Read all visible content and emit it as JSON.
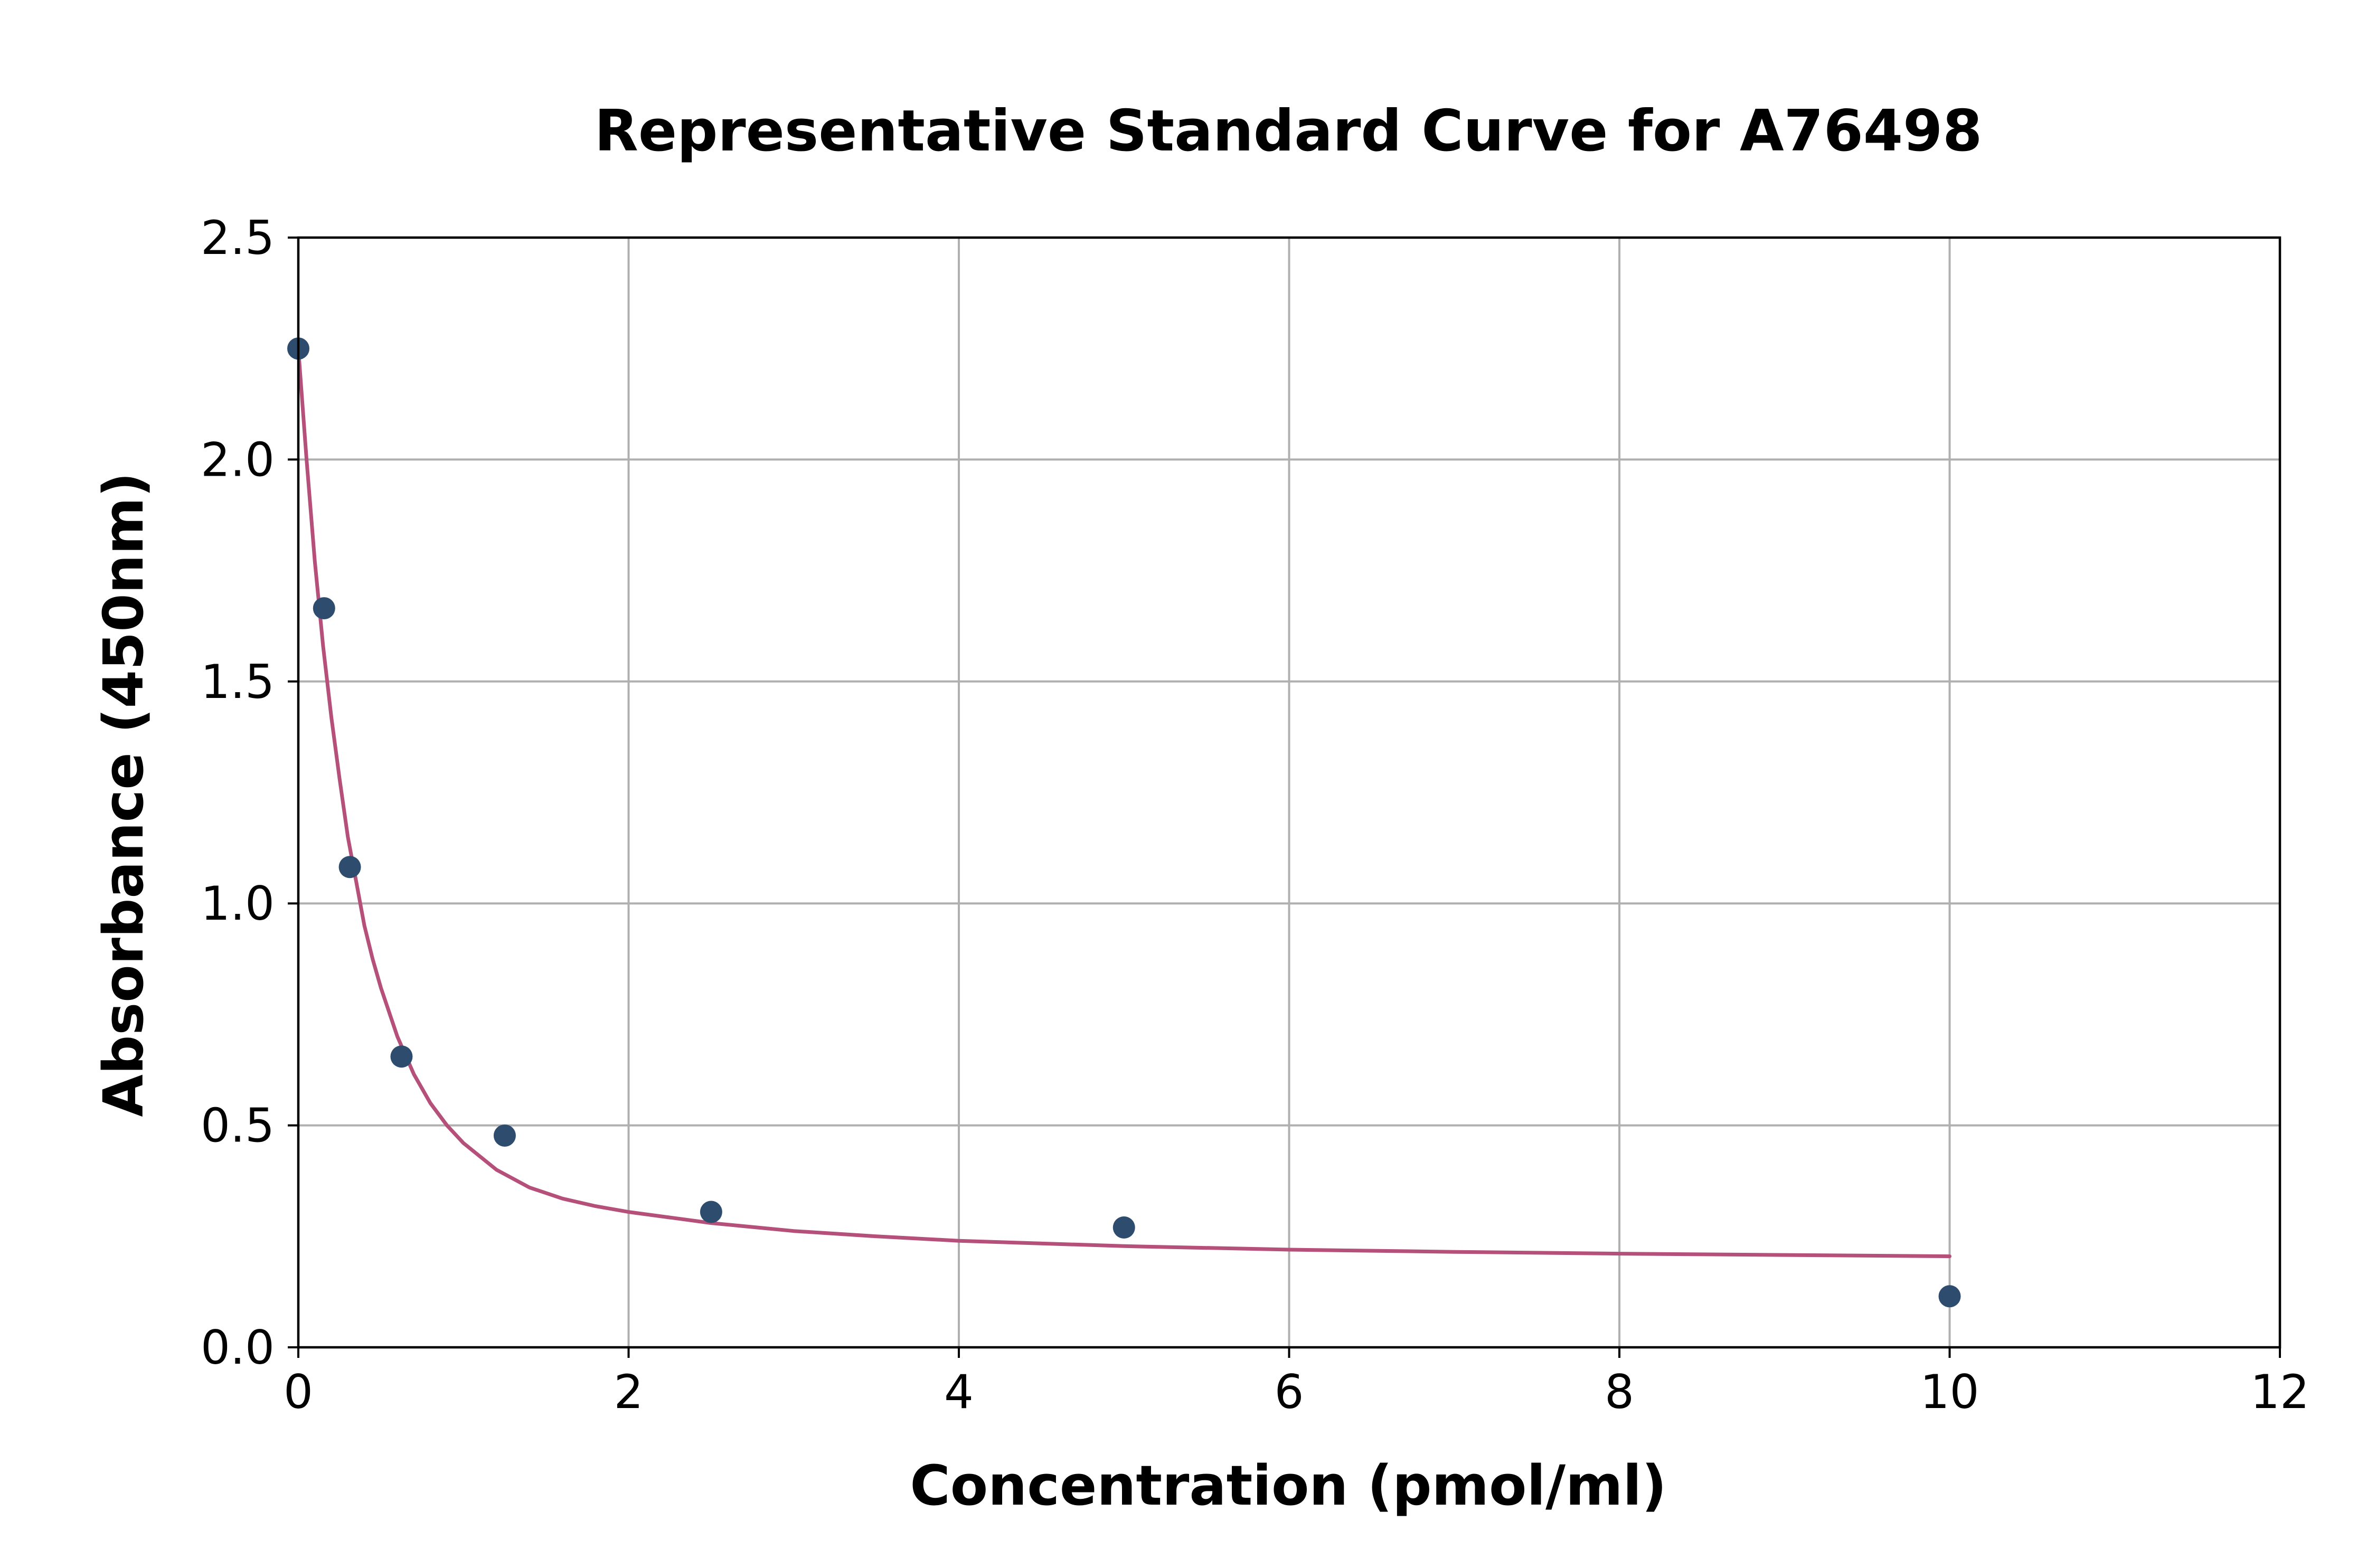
{
  "chart_data": {
    "type": "scatter",
    "title": "Representative Standard Curve for A76498",
    "xlabel": "Concentration (pmol/ml)",
    "ylabel": "Absorbance (450nm)",
    "xlim": [
      0,
      12
    ],
    "ylim": [
      0,
      2.5
    ],
    "x_ticks": [
      0,
      2,
      4,
      6,
      8,
      10,
      12
    ],
    "y_ticks": [
      0.0,
      0.5,
      1.0,
      1.5,
      2.0,
      2.5
    ],
    "x_tick_labels": [
      "0",
      "2",
      "4",
      "6",
      "8",
      "10",
      "12"
    ],
    "y_tick_labels": [
      "0.0",
      "0.5",
      "1.0",
      "1.5",
      "2.0",
      "2.5"
    ],
    "grid": true,
    "legend": "none",
    "series": [
      {
        "kind": "points",
        "x": [
          0,
          0.156,
          0.312,
          0.625,
          1.25,
          2.5,
          5,
          10
        ],
        "y": [
          2.25,
          1.665,
          1.082,
          0.655,
          0.477,
          0.305,
          0.27,
          0.115
        ],
        "color": "#2e4d6e"
      },
      {
        "kind": "fit-line",
        "x": [
          0,
          0.05,
          0.1,
          0.15,
          0.2,
          0.25,
          0.3,
          0.35,
          0.4,
          0.45,
          0.5,
          0.6,
          0.7,
          0.8,
          0.9,
          1.0,
          1.2,
          1.4,
          1.6,
          1.8,
          2.0,
          2.5,
          3.0,
          3.5,
          4.0,
          5.0,
          6.0,
          7.0,
          8.0,
          9.0,
          10.0
        ],
        "y": [
          2.25,
          2.0,
          1.77,
          1.58,
          1.42,
          1.28,
          1.15,
          1.05,
          0.95,
          0.875,
          0.81,
          0.7,
          0.615,
          0.55,
          0.5,
          0.46,
          0.4,
          0.36,
          0.335,
          0.318,
          0.305,
          0.28,
          0.262,
          0.25,
          0.24,
          0.228,
          0.22,
          0.215,
          0.211,
          0.208,
          0.205
        ],
        "color": "#b5507a"
      }
    ]
  }
}
